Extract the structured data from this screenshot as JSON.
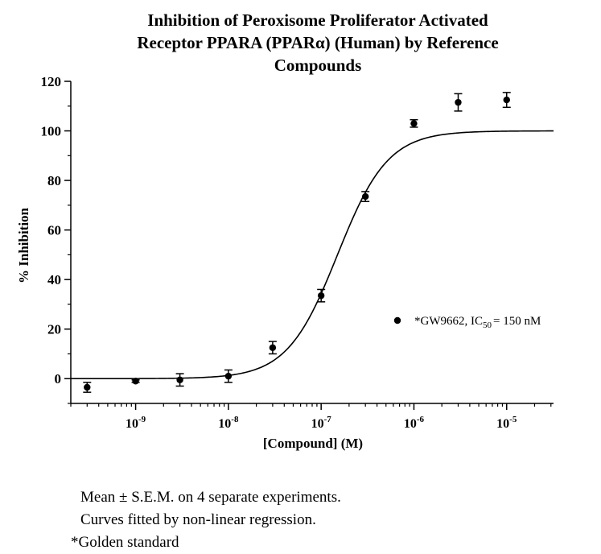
{
  "chart_data": {
    "type": "scatter",
    "title_lines": [
      "Inhibition of Peroxisome Proliferator Activated",
      "Receptor PPARA (PPARα) (Human) by Reference",
      "Compounds"
    ],
    "xlabel": "[Compound] (M)",
    "ylabel": "% Inhibition",
    "x_scale": "log",
    "xlim": [
      2e-10,
      3.2e-05
    ],
    "ylim": [
      -10,
      120
    ],
    "x_ticks": [
      {
        "base": "10",
        "exp": "-9",
        "value": 1e-09
      },
      {
        "base": "10",
        "exp": "-8",
        "value": 1e-08
      },
      {
        "base": "10",
        "exp": "-7",
        "value": 1e-07
      },
      {
        "base": "10",
        "exp": "-6",
        "value": 1e-06
      },
      {
        "base": "10",
        "exp": "-5",
        "value": 1e-05
      }
    ],
    "y_ticks": [
      0,
      20,
      40,
      60,
      80,
      100,
      120
    ],
    "series": [
      {
        "name_prefix": "*GW9662, IC",
        "name_sub": "50",
        "name_suffix": "= 150 nM",
        "points": [
          {
            "x": 3e-10,
            "y": -3.5,
            "err": 2.0
          },
          {
            "x": 1e-09,
            "y": -1.0,
            "err": 0.5
          },
          {
            "x": 3e-09,
            "y": -0.5,
            "err": 2.5
          },
          {
            "x": 1e-08,
            "y": 1.0,
            "err": 2.5
          },
          {
            "x": 3e-08,
            "y": 12.5,
            "err": 2.5
          },
          {
            "x": 1e-07,
            "y": 33.5,
            "err": 2.5
          },
          {
            "x": 3e-07,
            "y": 73.5,
            "err": 2.0
          },
          {
            "x": 1e-06,
            "y": 103.0,
            "err": 1.5
          },
          {
            "x": 3e-06,
            "y": 111.5,
            "err": 3.5
          },
          {
            "x": 1e-05,
            "y": 112.5,
            "err": 3.0
          }
        ],
        "fit": {
          "model": "sigmoidal dose-response",
          "bottom": 0,
          "top": 100,
          "ic50": 1.5e-07,
          "hill": 1.6
        }
      }
    ],
    "grid": false,
    "legend_position": "right-middle"
  },
  "notes": {
    "line1": "Mean ± S.E.M. on 4 separate experiments.",
    "line2": "Curves fitted by non-linear regression.",
    "line3": "*Golden standard"
  }
}
